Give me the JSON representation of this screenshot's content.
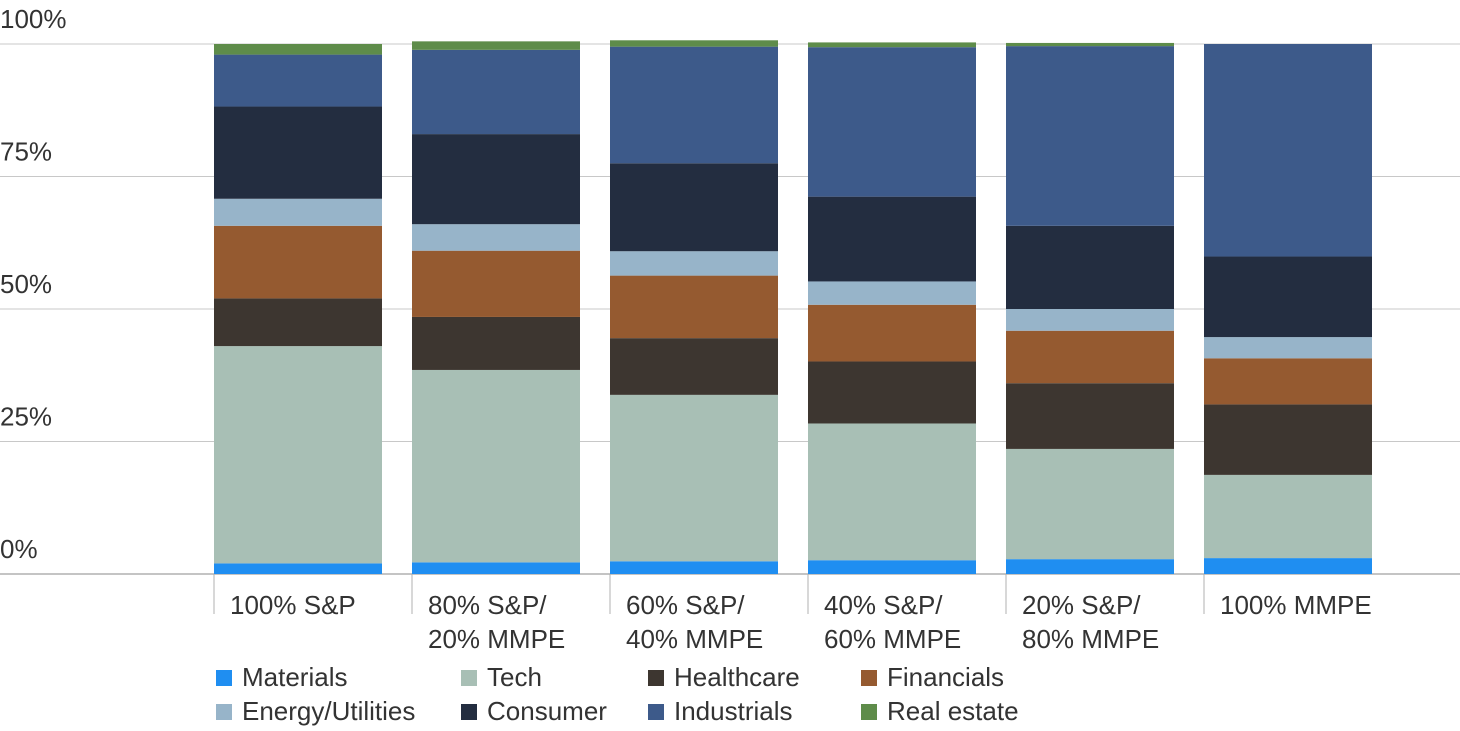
{
  "chart_data": {
    "type": "bar",
    "stacked": true,
    "title": "",
    "xlabel": "",
    "ylabel": "",
    "ylim": [
      0,
      100
    ],
    "y_ticks": [
      "0%",
      "25%",
      "50%",
      "75%",
      "100%"
    ],
    "categories": [
      [
        "100% S&P"
      ],
      [
        "80% S&P/",
        "20% MMPE"
      ],
      [
        "60% S&P/",
        "40% MMPE"
      ],
      [
        "40% S&P/",
        "60% MMPE"
      ],
      [
        "20% S&P/",
        "80% MMPE"
      ],
      [
        "100% MMPE"
      ]
    ],
    "series": [
      {
        "name": "Materials",
        "color": "#1f8ef1",
        "values": [
          2,
          2.2,
          2.4,
          2.6,
          2.8,
          3
        ]
      },
      {
        "name": "Tech",
        "color": "#a8bfb5",
        "values": [
          41,
          36.3,
          31.4,
          25.8,
          20.8,
          15.7
        ]
      },
      {
        "name": "Healthcare",
        "color": "#3d3630",
        "values": [
          9,
          10,
          10.7,
          11.7,
          12.4,
          13.3
        ]
      },
      {
        "name": "Financials",
        "color": "#955a30",
        "values": [
          13.7,
          12.5,
          11.8,
          10.7,
          9.9,
          8.7
        ]
      },
      {
        "name": "Energy/Utilities",
        "color": "#97b4c9",
        "values": [
          5.1,
          5,
          4.6,
          4.4,
          4.1,
          4
        ]
      },
      {
        "name": "Consumer",
        "color": "#232d40",
        "values": [
          17.4,
          17,
          16.6,
          16,
          15.7,
          15.2
        ]
      },
      {
        "name": "Industrials",
        "color": "#3d5a8a",
        "values": [
          9.8,
          15.9,
          22,
          28.2,
          33.9,
          40.1
        ]
      },
      {
        "name": "Real estate",
        "color": "#5e8c4a",
        "values": [
          2,
          1.6,
          1.2,
          0.9,
          0.6,
          0
        ]
      }
    ],
    "legend_position": "bottom",
    "grid": true
  }
}
